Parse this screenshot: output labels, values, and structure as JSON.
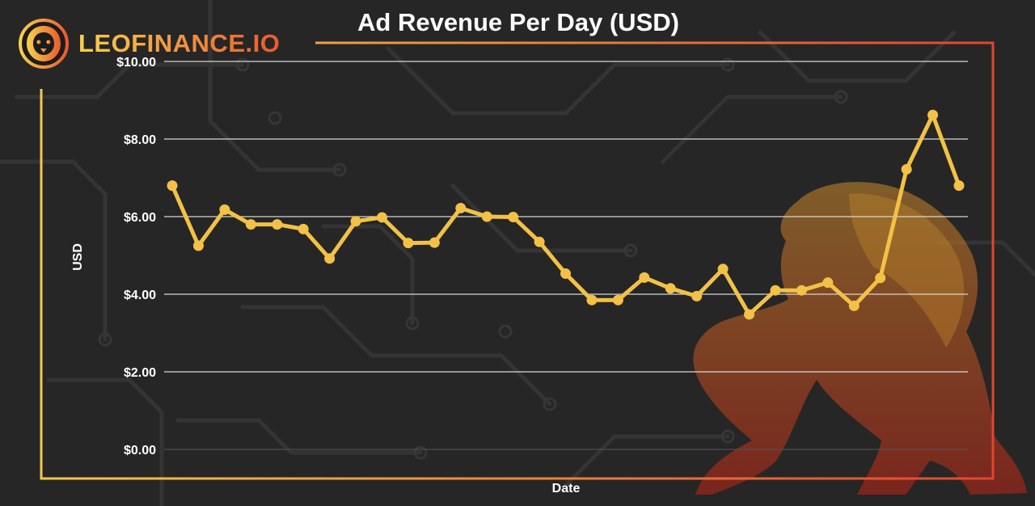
{
  "brand": {
    "name": "LEOFINANCE.IO",
    "accent": "#f5c24a",
    "accent_end": "#e8492f"
  },
  "chart_data": {
    "type": "line",
    "title": "Ad Revenue Per Day (USD)",
    "xlabel": "Date",
    "ylabel": "USD",
    "ylim": [
      0,
      10
    ],
    "yticks": [
      0,
      2,
      4,
      6,
      8,
      10
    ],
    "ytick_labels": [
      "$0.00",
      "$2.00",
      "$4.00",
      "$6.00",
      "$8.00",
      "$10.00"
    ],
    "grid": true,
    "series": [
      {
        "color": "#f2c146",
        "values": [
          6.8,
          5.25,
          6.18,
          5.8,
          5.8,
          5.68,
          4.92,
          5.88,
          5.98,
          5.32,
          5.33,
          6.22,
          6.0,
          5.99,
          5.35,
          4.53,
          3.85,
          3.85,
          4.43,
          4.15,
          3.95,
          4.65,
          3.48,
          4.1,
          4.1,
          4.3,
          3.7,
          4.42,
          7.22,
          8.62,
          6.8
        ]
      }
    ]
  }
}
